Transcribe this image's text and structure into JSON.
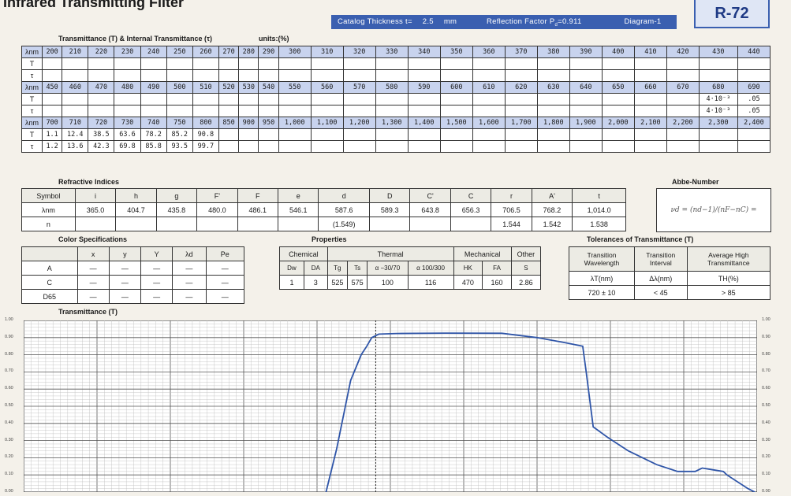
{
  "title": "Infrared Transmitting Filter",
  "header": {
    "thickness_label": "Catalog Thickness t=",
    "thickness_value": "2.5",
    "thickness_unit": "mm",
    "reflection_label": "Reflection Factor P",
    "reflection_sub": "d",
    "reflection_value": "=0.911",
    "diagram_label": "Diagram-1",
    "code": "R-72"
  },
  "transmittance_table": {
    "caption": "Transmittance (T) & Internal Transmittance (τ)",
    "units": "units:(%)",
    "lambda_label": "λnm",
    "t_label": "T",
    "tau_label": "τ",
    "blocks": [
      {
        "wl": [
          "200",
          "210",
          "220",
          "230",
          "240",
          "250",
          "260",
          "270",
          "280",
          "290",
          "300",
          "310",
          "320",
          "330",
          "340",
          "350",
          "360",
          "370",
          "380",
          "390",
          "400",
          "410",
          "420",
          "430",
          "440"
        ],
        "T": [
          "",
          "",
          "",
          "",
          "",
          "",
          "",
          "",
          "",
          "",
          "",
          "",
          "",
          "",
          "",
          "",
          "",
          "",
          "",
          "",
          "",
          "",
          "",
          "",
          ""
        ],
        "tau": [
          "",
          "",
          "",
          "",
          "",
          "",
          "",
          "",
          "",
          "",
          "",
          "",
          "",
          "",
          "",
          "",
          "",
          "",
          "",
          "",
          "",
          "",
          "",
          "",
          ""
        ]
      },
      {
        "wl": [
          "450",
          "460",
          "470",
          "480",
          "490",
          "500",
          "510",
          "520",
          "530",
          "540",
          "550",
          "560",
          "570",
          "580",
          "590",
          "600",
          "610",
          "620",
          "630",
          "640",
          "650",
          "660",
          "670",
          "680",
          "690"
        ],
        "T": [
          "",
          "",
          "",
          "",
          "",
          "",
          "",
          "",
          "",
          "",
          "",
          "",
          "",
          "",
          "",
          "",
          "",
          "",
          "",
          "",
          "",
          "",
          "",
          "4·10⁻³",
          ".05"
        ],
        "tau": [
          "",
          "",
          "",
          "",
          "",
          "",
          "",
          "",
          "",
          "",
          "",
          "",
          "",
          "",
          "",
          "",
          "",
          "",
          "",
          "",
          "",
          "",
          "",
          "4·10⁻³",
          ".05"
        ]
      },
      {
        "wl": [
          "700",
          "710",
          "720",
          "730",
          "740",
          "750",
          "800",
          "850",
          "900",
          "950",
          "1,000",
          "1,100",
          "1,200",
          "1,300",
          "1,400",
          "1,500",
          "1,600",
          "1,700",
          "1,800",
          "1,900",
          "2,000",
          "2,100",
          "2,200",
          "2,300",
          "2,400"
        ],
        "T": [
          "1.1",
          "12.4",
          "38.5",
          "63.6",
          "78.2",
          "85.2",
          "90.8",
          "",
          "",
          "",
          "",
          "",
          "",
          "",
          "",
          "",
          "",
          "",
          "",
          "",
          "",
          "",
          "",
          "",
          ""
        ],
        "tau": [
          "1.2",
          "13.6",
          "42.3",
          "69.8",
          "85.8",
          "93.5",
          "99.7",
          "",
          "",
          "",
          "",
          "",
          "",
          "",
          "",
          "",
          "",
          "",
          "",
          "",
          "",
          "",
          "",
          "",
          ""
        ]
      }
    ]
  },
  "refractive": {
    "caption": "Refractive Indices",
    "row_labels": [
      "Symbol",
      "λnm",
      "n"
    ],
    "symbols": [
      "i",
      "h",
      "g",
      "F'",
      "F",
      "e",
      "d",
      "D",
      "C'",
      "C",
      "r",
      "A'",
      "t"
    ],
    "wavelengths": [
      "365.0",
      "404.7",
      "435.8",
      "480.0",
      "486.1",
      "546.1",
      "587.6",
      "589.3",
      "643.8",
      "656.3",
      "706.5",
      "768.2",
      "1,014.0"
    ],
    "n": [
      "",
      "",
      "",
      "",
      "",
      "",
      "(1.549)",
      "",
      "",
      "",
      "1.544",
      "1.542",
      "1.538"
    ]
  },
  "abbe": {
    "caption": "Abbe-Number",
    "formula": "νd = (nd−1)/(nF−nC) ="
  },
  "color_specs": {
    "caption": "Color Specifications",
    "headers": [
      "",
      "x",
      "y",
      "Y",
      "λd",
      "Pe"
    ],
    "rows": [
      [
        "A",
        "—",
        "—",
        "—",
        "—",
        "—"
      ],
      [
        "C",
        "—",
        "—",
        "—",
        "—",
        "—"
      ],
      [
        "D65",
        "—",
        "—",
        "—",
        "—",
        "—"
      ]
    ]
  },
  "properties": {
    "caption": "Properties",
    "groups": [
      "Chemical",
      "Thermal",
      "Mechanical",
      "Other"
    ],
    "subheaders": [
      "Dw",
      "DA",
      "Tg",
      "Ts",
      "α −30/70",
      "α 100/300",
      "HK",
      "FA",
      "S"
    ],
    "values": [
      "1",
      "3",
      "525",
      "575",
      "100",
      "116",
      "470",
      "160",
      "2.86"
    ]
  },
  "tolerances": {
    "caption": "Tolerances of Transmittance (T)",
    "headers": [
      "Transition Wavelength",
      "Transition Interval",
      "Average High Transmittance"
    ],
    "units": [
      "λT(nm)",
      "Δλ(nm)",
      "TH(%)"
    ],
    "values": [
      "720 ± 10",
      "< 45",
      "> 85"
    ]
  },
  "chart_data": {
    "type": "line",
    "title": "Transmittance (T)",
    "xlabel": "",
    "ylabel": "",
    "y_ticks": [
      "1.00",
      "0.90",
      "0.80",
      "0.70",
      "0.60",
      "0.50",
      "0.40",
      "0.30",
      "0.20",
      "0.10",
      "0.00"
    ],
    "ylim": [
      0,
      1
    ],
    "grid": true,
    "series": [
      {
        "points": [
          [
            0.43,
            0.0
          ],
          [
            0.445,
            0.25
          ],
          [
            0.465,
            0.65
          ],
          [
            0.48,
            0.8
          ],
          [
            0.488,
            0.85
          ],
          [
            0.495,
            0.9
          ],
          [
            0.505,
            0.92
          ],
          [
            0.53,
            0.924
          ],
          [
            0.6,
            0.926
          ],
          [
            0.68,
            0.925
          ],
          [
            0.73,
            0.9
          ],
          [
            0.77,
            0.87
          ],
          [
            0.795,
            0.85
          ],
          [
            0.8,
            0.7
          ],
          [
            0.81,
            0.38
          ],
          [
            0.83,
            0.32
          ],
          [
            0.86,
            0.24
          ],
          [
            0.9,
            0.16
          ],
          [
            0.93,
            0.12
          ],
          [
            0.955,
            0.12
          ],
          [
            0.965,
            0.14
          ],
          [
            0.98,
            0.13
          ],
          [
            0.995,
            0.12
          ],
          [
            1.0,
            0.1
          ],
          [
            1.03,
            0.02
          ],
          [
            1.04,
            0.0
          ]
        ]
      }
    ],
    "line_color": "#2f55a8"
  }
}
